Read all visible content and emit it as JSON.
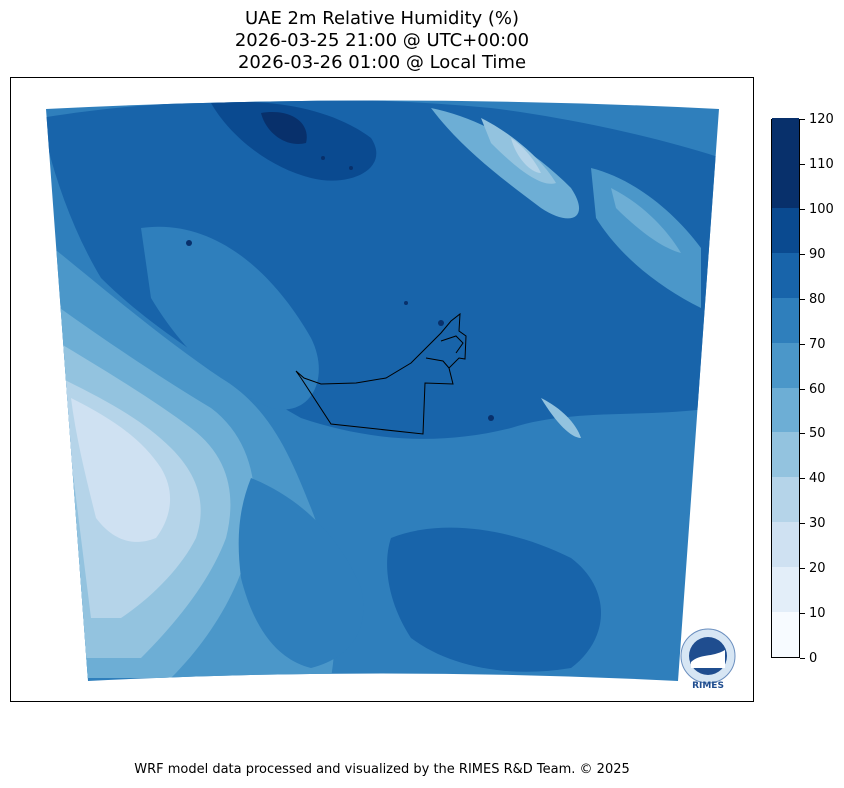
{
  "title": {
    "line1": "UAE 2m Relative Humidity (%)",
    "line2": "2026-03-25 21:00 @ UTC+00:00",
    "line3": "2026-03-26 01:00 @ Local Time"
  },
  "colorbar": {
    "ticks": [
      "0",
      "10",
      "20",
      "30",
      "40",
      "50",
      "60",
      "70",
      "80",
      "90",
      "100",
      "110",
      "120"
    ],
    "colors": [
      "#f7fbff",
      "#e3eef9",
      "#cfe1f2",
      "#b5d4e9",
      "#93c3df",
      "#6daed5",
      "#4b97c9",
      "#2f7fbc",
      "#1864aa",
      "#0a4a90",
      "#08306b",
      "#08306b"
    ]
  },
  "logo": {
    "text": "RIMES"
  },
  "footer": "WRF model data processed and visualized by the RIMES R&D Team. © 2025"
}
